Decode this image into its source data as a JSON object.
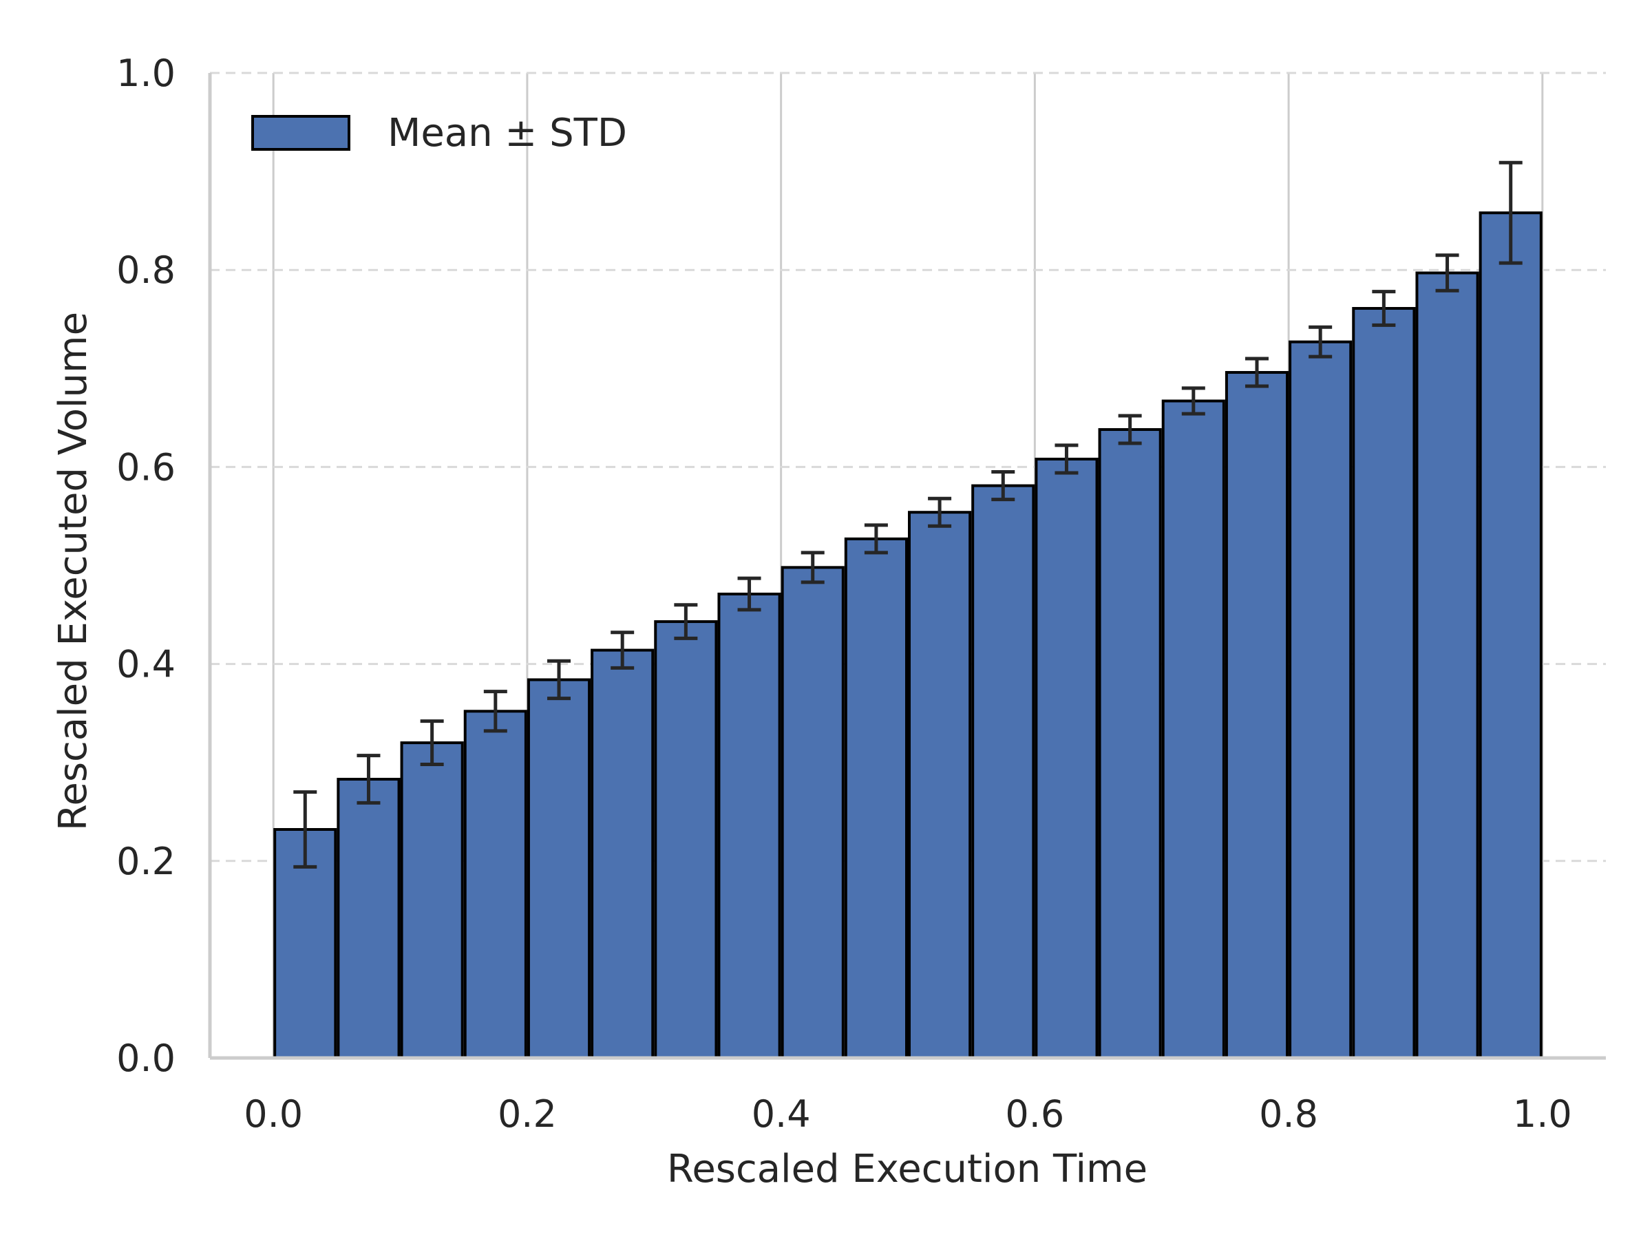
{
  "chart_data": {
    "type": "bar",
    "xlabel": "Rescaled Execution Time",
    "ylabel": "Rescaled Executed Volume",
    "xlim": [
      -0.05,
      1.05
    ],
    "ylim": [
      0.0,
      1.0
    ],
    "xticks": [
      "0.0",
      "0.2",
      "0.4",
      "0.6",
      "0.8",
      "1.0"
    ],
    "xtick_values": [
      0.0,
      0.2,
      0.4,
      0.6,
      0.8,
      1.0
    ],
    "yticks": [
      "0.0",
      "0.2",
      "0.4",
      "0.6",
      "0.8",
      "1.0"
    ],
    "ytick_values": [
      0.0,
      0.2,
      0.4,
      0.6,
      0.8,
      1.0
    ],
    "grid": true,
    "legend": {
      "position": "top-left",
      "label": "Mean ± STD"
    },
    "bin_width": 0.05,
    "bar_color": "#4c72b0",
    "edge_color": "#000000",
    "series": [
      {
        "name": "Mean ± STD",
        "x": [
          0.0,
          0.05,
          0.1,
          0.15,
          0.2,
          0.25,
          0.3,
          0.35,
          0.4,
          0.45,
          0.5,
          0.55,
          0.6,
          0.65,
          0.7,
          0.75,
          0.8,
          0.85,
          0.9,
          0.95
        ],
        "values": [
          0.232,
          0.283,
          0.32,
          0.352,
          0.384,
          0.414,
          0.443,
          0.471,
          0.498,
          0.527,
          0.554,
          0.581,
          0.608,
          0.638,
          0.667,
          0.696,
          0.727,
          0.761,
          0.797,
          0.858
        ],
        "errors": [
          0.038,
          0.024,
          0.022,
          0.02,
          0.019,
          0.018,
          0.017,
          0.016,
          0.015,
          0.014,
          0.014,
          0.014,
          0.014,
          0.014,
          0.013,
          0.014,
          0.015,
          0.017,
          0.018,
          0.051
        ]
      }
    ]
  }
}
